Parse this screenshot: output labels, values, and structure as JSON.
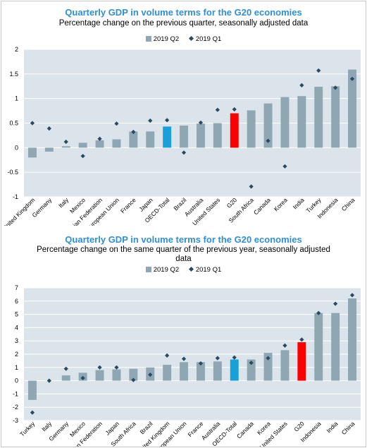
{
  "colors": {
    "bar": "#8fa7b3",
    "oecd_bar": "#1aa0d8",
    "g20_bar": "#ff0000",
    "marker": "#2b4a60",
    "title": "#2e8fd5",
    "plot_background": "#dbe4ea",
    "gridline": "#ffffff"
  },
  "charts": [
    {
      "title": "Quarterly GDP in volume terms for the G20 economies",
      "subtitle": "Percentage change on the previous quarter, seasonally adjusted data",
      "legend": {
        "bar_label": "2019 Q2",
        "marker_label": "2019 Q1"
      }
    },
    {
      "title": "Quarterly GDP in volume terms for the G20 economies",
      "subtitle": "Percentage change on the same quarter of the previous year, seasonally adjusted data",
      "legend": {
        "bar_label": "2019 Q2",
        "marker_label": "2019 Q1"
      }
    }
  ],
  "chart_data": [
    {
      "type": "bar",
      "title": "Quarterly GDP in volume terms for the G20 economies",
      "subtitle": "Percentage change on the previous quarter, seasonally adjusted data",
      "legend_position": "top-center",
      "grid": true,
      "ylim": [
        -1,
        2
      ],
      "yticks": [
        -1,
        -0.5,
        0,
        0.5,
        1,
        1.5,
        2
      ],
      "ytick_labels": [
        "-1",
        "-0.5",
        "0",
        "0.5",
        "1",
        "1.5",
        "2"
      ],
      "categories": [
        "United Kingdom",
        "Germany",
        "Italy",
        "Mexico",
        "Russian Federation",
        "European Union",
        "France",
        "Japan",
        "OECD-Total",
        "Brazil",
        "Australia",
        "United States",
        "G20",
        "South Africa",
        "Canada",
        "Korea",
        "India",
        "Turkey",
        "Indonesia",
        "China"
      ],
      "highlight": {
        "OECD-Total": "oecd_bar",
        "G20": "g20_bar"
      },
      "series": [
        {
          "name": "2019 Q2",
          "kind": "bar",
          "values": [
            -0.2,
            -0.08,
            0.03,
            0.1,
            0.15,
            0.17,
            0.33,
            0.33,
            0.43,
            0.45,
            0.49,
            0.5,
            0.7,
            0.76,
            0.9,
            1.03,
            1.05,
            1.24,
            1.25,
            1.59
          ]
        },
        {
          "name": "2019 Q1",
          "kind": "marker",
          "values": [
            0.5,
            0.39,
            0.12,
            -0.17,
            0.18,
            0.49,
            0.32,
            0.55,
            0.56,
            -0.1,
            0.51,
            0.77,
            0.78,
            -0.79,
            0.14,
            -0.38,
            1.27,
            1.57,
            1.22,
            1.4
          ]
        }
      ]
    },
    {
      "type": "bar",
      "title": "Quarterly GDP in volume terms for the G20 economies",
      "subtitle": "Percentage change on the same quarter of the previous year, seasonally adjusted data",
      "legend_position": "top-center",
      "grid": true,
      "ylim": [
        -3,
        7
      ],
      "yticks": [
        -3,
        -2,
        -1,
        0,
        1,
        2,
        3,
        4,
        5,
        6,
        7
      ],
      "ytick_labels": [
        "-3",
        "-2",
        "-1",
        "0",
        "1",
        "2",
        "3",
        "4",
        "5",
        "6",
        "7"
      ],
      "categories": [
        "Turkey",
        "Italy",
        "Germany",
        "Mexico",
        "Russian Federation",
        "Japan",
        "South Africa",
        "Brazil",
        "United Kingdom",
        "European Union",
        "France",
        "Australia",
        "OECD-Total",
        "Canada",
        "Korea",
        "United States",
        "G20",
        "Indonesia",
        "India",
        "China"
      ],
      "highlight": {
        "OECD-Total": "oecd_bar",
        "G20": "g20_bar"
      },
      "series": [
        {
          "name": "2019 Q2",
          "kind": "bar",
          "values": [
            -1.45,
            0.0,
            0.4,
            0.6,
            0.8,
            0.85,
            0.9,
            1.0,
            1.2,
            1.4,
            1.4,
            1.45,
            1.6,
            1.6,
            2.1,
            2.3,
            2.9,
            5.1,
            5.1,
            6.2
          ]
        },
        {
          "name": "2019 Q1",
          "kind": "marker",
          "values": [
            -2.4,
            0.0,
            0.9,
            0.2,
            1.0,
            1.0,
            0.05,
            0.45,
            1.9,
            1.65,
            1.3,
            1.7,
            1.75,
            1.35,
            1.7,
            2.65,
            3.1,
            5.1,
            5.8,
            6.45
          ]
        }
      ]
    }
  ]
}
